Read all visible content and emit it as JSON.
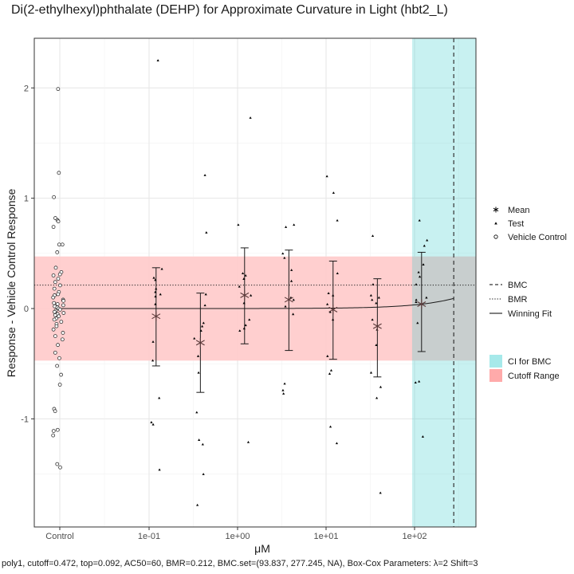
{
  "title": "Di(2-ethylhexyl)phthalate (DEHP) for Approximate Curvature in Light (hbt2_L)",
  "footer": "poly1, cutoff=0.472, top=0.092, AC50=60, BMR=0.212, BMC.set=(93.837, 277.245, NA), Box-Cox Parameters: λ=2 Shift=3",
  "chart_data": {
    "type": "scatter",
    "title": "Di(2-ethylhexyl)phthalate (DEHP) for Approximate Curvature in Light (hbt2_L)",
    "xlabel": "μM",
    "ylabel": "Response - Vehicle Control Response",
    "x_scale": "log10",
    "x_ticks": [
      {
        "label": "Control",
        "value": null
      },
      {
        "label": "1e-01",
        "value": 0.1
      },
      {
        "label": "1e+00",
        "value": 1
      },
      {
        "label": "1e+01",
        "value": 10
      },
      {
        "label": "1e+02",
        "value": 100
      }
    ],
    "y_ticks": [
      -1,
      0,
      1,
      2
    ],
    "ylim": [
      -1.98,
      2.45
    ],
    "grid": true,
    "legend_position": "right",
    "legend_groups": [
      [
        "Mean",
        "Test",
        "Vehicle Control"
      ],
      [
        "BMC",
        "BMR",
        "Winning Fit"
      ],
      [
        "CI for BMC",
        "Cutoff Range"
      ]
    ],
    "cutoff_range": [
      -0.472,
      0.472
    ],
    "bmr": 0.212,
    "bmc": 277.245,
    "bmc_ci": [
      93.837,
      277.245
    ],
    "colors": {
      "cutoff": "#ffcccc",
      "ci": "#c9f0f2",
      "points": "#000000",
      "mean": "#5a3a3a"
    },
    "fit": {
      "model": "poly1",
      "top": 0.092,
      "ac50": 60,
      "max_conc": 277.245
    },
    "vehicle_control": [
      1.99,
      1.23,
      1.01,
      0.82,
      0.8,
      0.79,
      0.74,
      0.58,
      0.58,
      0.51,
      0.37,
      0.33,
      0.31,
      0.3,
      0.27,
      0.24,
      0.21,
      0.18,
      0.15,
      0.13,
      0.12,
      0.1,
      0.08,
      0.07,
      0.05,
      0.04,
      0.03,
      0.02,
      0.01,
      0.0,
      -0.01,
      -0.02,
      -0.03,
      -0.04,
      -0.05,
      -0.06,
      -0.07,
      -0.09,
      -0.1,
      -0.12,
      -0.14,
      -0.16,
      -0.19,
      -0.22,
      -0.25,
      -0.28,
      -0.33,
      -0.4,
      -0.45,
      -0.52,
      -0.6,
      -0.69,
      -0.91,
      -0.93,
      -1.1,
      -1.11,
      -1.15,
      -1.41,
      -1.44
    ],
    "test": [
      {
        "conc": 0.12,
        "mean": -0.07,
        "sd_low": -0.52,
        "sd_high": 0.37,
        "values": [
          2.25,
          0.36,
          0.28,
          0.26,
          0.18,
          0.15,
          0.13,
          0.11,
          0.04,
          -0.3,
          -0.47,
          -0.81,
          -1.03,
          -1.05,
          -1.46
        ]
      },
      {
        "conc": 0.38,
        "mean": -0.31,
        "sd_low": -0.76,
        "sd_high": 0.14,
        "values": [
          1.21,
          0.69,
          0.13,
          0.03,
          -0.13,
          -0.16,
          -0.2,
          -0.27,
          -0.43,
          -0.58,
          -0.94,
          -1.19,
          -1.23,
          -1.5,
          -1.78
        ]
      },
      {
        "conc": 1.2,
        "mean": 0.12,
        "sd_low": -0.32,
        "sd_high": 0.55,
        "values": [
          1.73,
          0.76,
          0.32,
          0.3,
          0.27,
          0.2,
          0.12,
          0.05,
          -0.1,
          -0.15,
          -0.18,
          -0.2,
          -1.21
        ]
      },
      {
        "conc": 3.8,
        "mean": 0.08,
        "sd_low": -0.38,
        "sd_high": 0.53,
        "values": [
          0.76,
          0.74,
          0.5,
          0.46,
          0.35,
          0.25,
          0.1,
          0.08,
          0.02,
          -0.05,
          -0.68,
          -0.74,
          -0.77
        ]
      },
      {
        "conc": 12,
        "mean": -0.01,
        "sd_low": -0.46,
        "sd_high": 0.43,
        "values": [
          1.2,
          1.05,
          0.8,
          0.32,
          0.14,
          0.12,
          0.04,
          -0.03,
          -0.1,
          -0.43,
          -0.56,
          -0.59,
          -1.07,
          -1.22
        ]
      },
      {
        "conc": 38,
        "mean": -0.16,
        "sd_low": -0.62,
        "sd_high": 0.27,
        "values": [
          0.66,
          0.22,
          0.12,
          0.1,
          0.08,
          0.05,
          -0.1,
          -0.19,
          -0.33,
          -0.58,
          -0.71,
          -0.81,
          -1.67
        ]
      },
      {
        "conc": 120,
        "mean": 0.04,
        "sd_low": -0.39,
        "sd_high": 0.51,
        "values": [
          0.8,
          0.62,
          0.57,
          0.4,
          0.33,
          0.29,
          0.22,
          0.1,
          0.08,
          0.06,
          -0.13,
          -0.66,
          -0.67,
          -1.16
        ]
      }
    ]
  }
}
